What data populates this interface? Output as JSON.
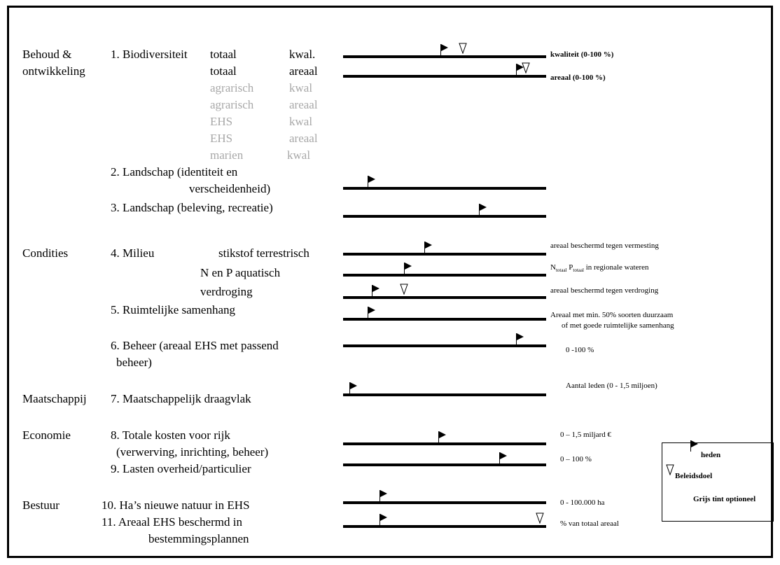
{
  "categories": {
    "behoud_1": "Behoud &",
    "behoud_2": "ontwikkeling",
    "condities": "Condities",
    "maatschappij": "Maatschappij",
    "economie": "Economie",
    "bestuur": "Bestuur"
  },
  "items": {
    "i1_label": "1. Biodiversiteit",
    "i1_rows": [
      {
        "scope": "totaal",
        "measure": "kwal.",
        "grey": false
      },
      {
        "scope": "totaal",
        "measure": "areaal",
        "grey": false
      },
      {
        "scope": "agrarisch",
        "measure": "kwal",
        "grey": true
      },
      {
        "scope": "agrarisch",
        "measure": "areaal",
        "grey": true
      },
      {
        "scope": "EHS",
        "measure": "kwal",
        "grey": true
      },
      {
        "scope": "EHS",
        "measure": "areaal",
        "grey": true
      },
      {
        "scope": "marien",
        "measure": "kwal",
        "grey": true
      }
    ],
    "i2_line1": "2. Landschap (identiteit en",
    "i2_line2": "verscheidenheid)",
    "i3": "3. Landschap (beleving, recreatie)",
    "i4_label": "4. Milieu",
    "i4_sub1": "stikstof terrestrisch",
    "i4_sub2": "N en P  aquatisch",
    "i4_sub3": "verdroging",
    "i5": "5. Ruimtelijke samenhang",
    "i6_line1": "6. Beheer (areaal EHS met passend",
    "i6_line2": "beheer)",
    "i7": "7. Maatschappelijk draagvlak",
    "i8_line1": "8. Totale kosten voor rijk",
    "i8_line2": "(verwerving, inrichting, beheer)",
    "i9": "9. Lasten overheid/particulier",
    "i10": "10. Ha’s nieuwe natuur in EHS",
    "i11_line1": "11. Areaal EHS beschermd in",
    "i11_line2": "bestemmingsplannen"
  },
  "scales": {
    "s1": "kwaliteit  (0-100 %)",
    "s2": "areaal (0-100 %)",
    "s4a": "areaal beschermd tegen vermesting",
    "s4b_n": "N",
    "s4b_nsub": "totaal",
    "s4b_p": " P",
    "s4b_psub": "totaal",
    "s4b_rest": " in regionale wateren",
    "s4c": "areaal beschermd tegen verdroging",
    "s5_line1": "Areaal met min. 50% soorten duurzaam",
    "s5_line2": "of met goede ruimtelijke samenhang",
    "s6": "0 -100 %",
    "s7": "Aantal leden (0 - 1,5 miljoen)",
    "s8": "0 – 1,5 miljard €",
    "s9": "0 – 100 %",
    "s10": "0 - 100.000 ha",
    "s11": "% van totaal areaal"
  },
  "indicator_levels": [
    {
      "id": "1-kwal",
      "heden": 0.48,
      "beleidsdoel": 0.59
    },
    {
      "id": "1-areaal",
      "heden": 0.85,
      "beleidsdoel": 0.9
    },
    {
      "id": "2",
      "heden": 0.12
    },
    {
      "id": "3",
      "heden": 0.67
    },
    {
      "id": "4-stikstof",
      "heden": 0.4
    },
    {
      "id": "4-NP",
      "heden": 0.3
    },
    {
      "id": "4-verdroging",
      "heden": 0.14,
      "beleidsdoel": 0.3
    },
    {
      "id": "5",
      "heden": 0.12
    },
    {
      "id": "6",
      "heden": 0.85
    },
    {
      "id": "7",
      "heden": 0.03
    },
    {
      "id": "8",
      "heden": 0.47
    },
    {
      "id": "9",
      "heden": 0.77
    },
    {
      "id": "10",
      "heden": 0.18
    },
    {
      "id": "11",
      "heden": 0.18,
      "beleidsdoel": 0.97
    }
  ],
  "legend": {
    "heden": "heden",
    "beleidsdoel": "Beleidsdoel",
    "grijs": "Grijs tint optioneel"
  }
}
